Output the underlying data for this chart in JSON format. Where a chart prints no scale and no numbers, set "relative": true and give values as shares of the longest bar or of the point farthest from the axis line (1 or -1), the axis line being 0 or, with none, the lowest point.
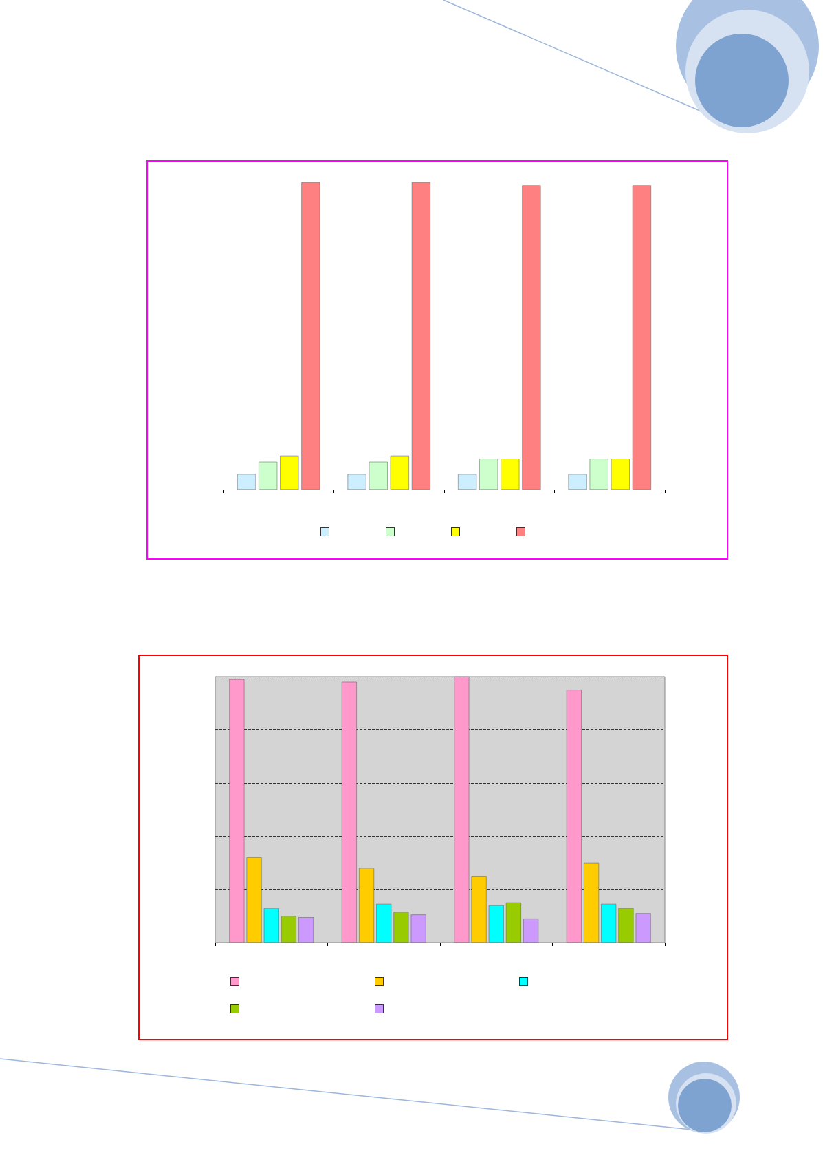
{
  "chart_data": [
    {
      "type": "bar",
      "relative": true,
      "categories": [
        null,
        null,
        null,
        null
      ],
      "series": [
        {
          "color": "#cceeff",
          "values": [
            0.05,
            0.05,
            0.05,
            0.05
          ]
        },
        {
          "color": "#ccffcc",
          "values": [
            0.09,
            0.09,
            0.1,
            0.1
          ]
        },
        {
          "color": "#ffff00",
          "values": [
            0.11,
            0.11,
            0.1,
            0.1
          ]
        },
        {
          "color": "#ff8080",
          "values": [
            1,
            1,
            0.99,
            0.99
          ]
        }
      ]
    },
    {
      "type": "bar",
      "relative": true,
      "categories": [
        null,
        null,
        null,
        null
      ],
      "grid": "y",
      "series": [
        {
          "color": "#ff99cc",
          "values": [
            0.99,
            0.98,
            1,
            0.95
          ]
        },
        {
          "color": "#ffcc00",
          "values": [
            0.32,
            0.28,
            0.25,
            0.3
          ]
        },
        {
          "color": "#00ffff",
          "values": [
            0.13,
            0.145,
            0.14,
            0.145
          ]
        },
        {
          "color": "#99cc00",
          "values": [
            0.1,
            0.115,
            0.15,
            0.13
          ]
        },
        {
          "color": "#cc99ff",
          "values": [
            0.095,
            0.105,
            0.09,
            0.11
          ]
        }
      ]
    }
  ]
}
